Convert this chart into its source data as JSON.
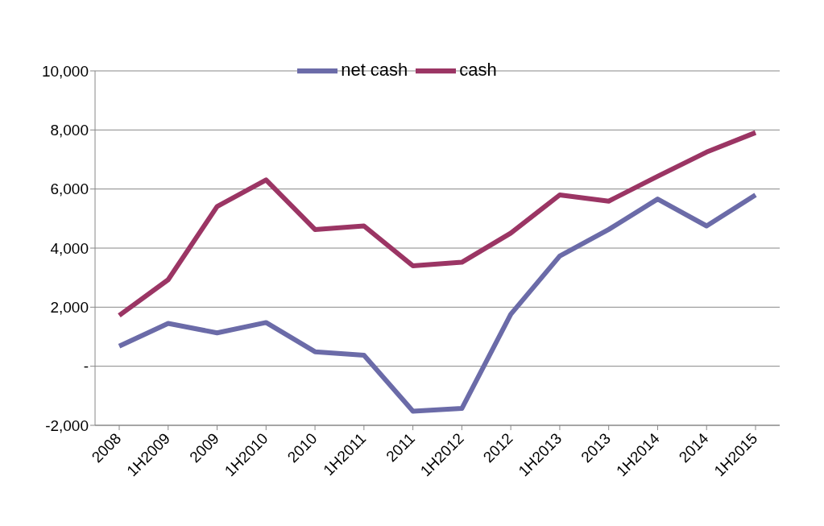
{
  "chart_data": {
    "type": "line",
    "categories": [
      "2008",
      "1H2009",
      "2009",
      "1H2010",
      "2010",
      "1H2011",
      "2011",
      "1H2012",
      "2012",
      "1H2013",
      "2013",
      "1H2014",
      "2014",
      "1H2015"
    ],
    "series": [
      {
        "name": "net cash",
        "color": "#6b6ba8",
        "values": [
          680,
          1450,
          1130,
          1480,
          490,
          370,
          -1520,
          -1430,
          1760,
          3730,
          4630,
          5660,
          4750,
          5800
        ]
      },
      {
        "name": "cash",
        "color": "#9b3564",
        "values": [
          1720,
          2930,
          5410,
          6310,
          4630,
          4750,
          3400,
          3520,
          4510,
          5800,
          5590,
          6430,
          7250,
          7910
        ]
      }
    ],
    "ylim": [
      -2000,
      10000
    ],
    "yticks": [
      {
        "value": -2000,
        "label": "-2,000"
      },
      {
        "value": 0,
        "label": "-"
      },
      {
        "value": 2000,
        "label": "2,000"
      },
      {
        "value": 4000,
        "label": "4,000"
      },
      {
        "value": 6000,
        "label": "6,000"
      },
      {
        "value": 8000,
        "label": "8,000"
      },
      {
        "value": 10000,
        "label": "10,000"
      }
    ],
    "grid": "y",
    "legend": "top",
    "marker": "none",
    "line_style": "solid"
  }
}
